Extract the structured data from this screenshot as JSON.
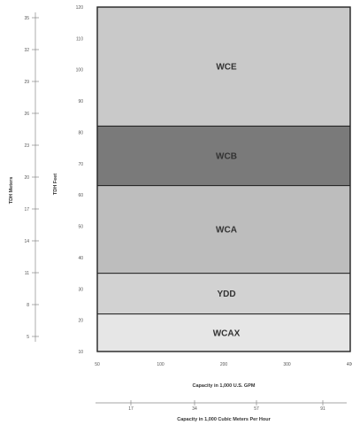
{
  "chart_data": {
    "type": "area",
    "xlabel": "Capacity in 1,000 U.S. GPM",
    "x2label": "Capacity in 1,000 Cubic Meters Per Hour",
    "ylabel": "TDH Feet",
    "y2label": "TDH Meters",
    "xlim": [
      50,
      400
    ],
    "ylim": [
      10,
      120
    ],
    "x_ticks": [
      "50",
      "100",
      "200",
      "300",
      "400"
    ],
    "y_ticks": [
      "10",
      "20",
      "30",
      "40",
      "50",
      "60",
      "70",
      "80",
      "90",
      "100",
      "110",
      "120"
    ],
    "x2_ticks": [
      "17",
      "34",
      "57",
      "91"
    ],
    "y2_ticks": [
      "5",
      "8",
      "11",
      "14",
      "17",
      "20",
      "23",
      "26",
      "29",
      "32",
      "35"
    ],
    "regions": [
      {
        "name": "WCAX",
        "y_min": 10,
        "y_max": 22,
        "color": "#e6e6e6"
      },
      {
        "name": "YDD",
        "y_min": 22,
        "y_max": 35,
        "color": "#d2d2d2"
      },
      {
        "name": "WCA",
        "y_min": 35,
        "y_max": 63,
        "color": "#bdbdbd"
      },
      {
        "name": "WCB",
        "y_min": 63,
        "y_max": 82,
        "color": "#7a7a7a"
      },
      {
        "name": "WCE",
        "y_min": 82,
        "y_max": 120,
        "color": "#c9c9c9"
      }
    ],
    "grid": false
  }
}
